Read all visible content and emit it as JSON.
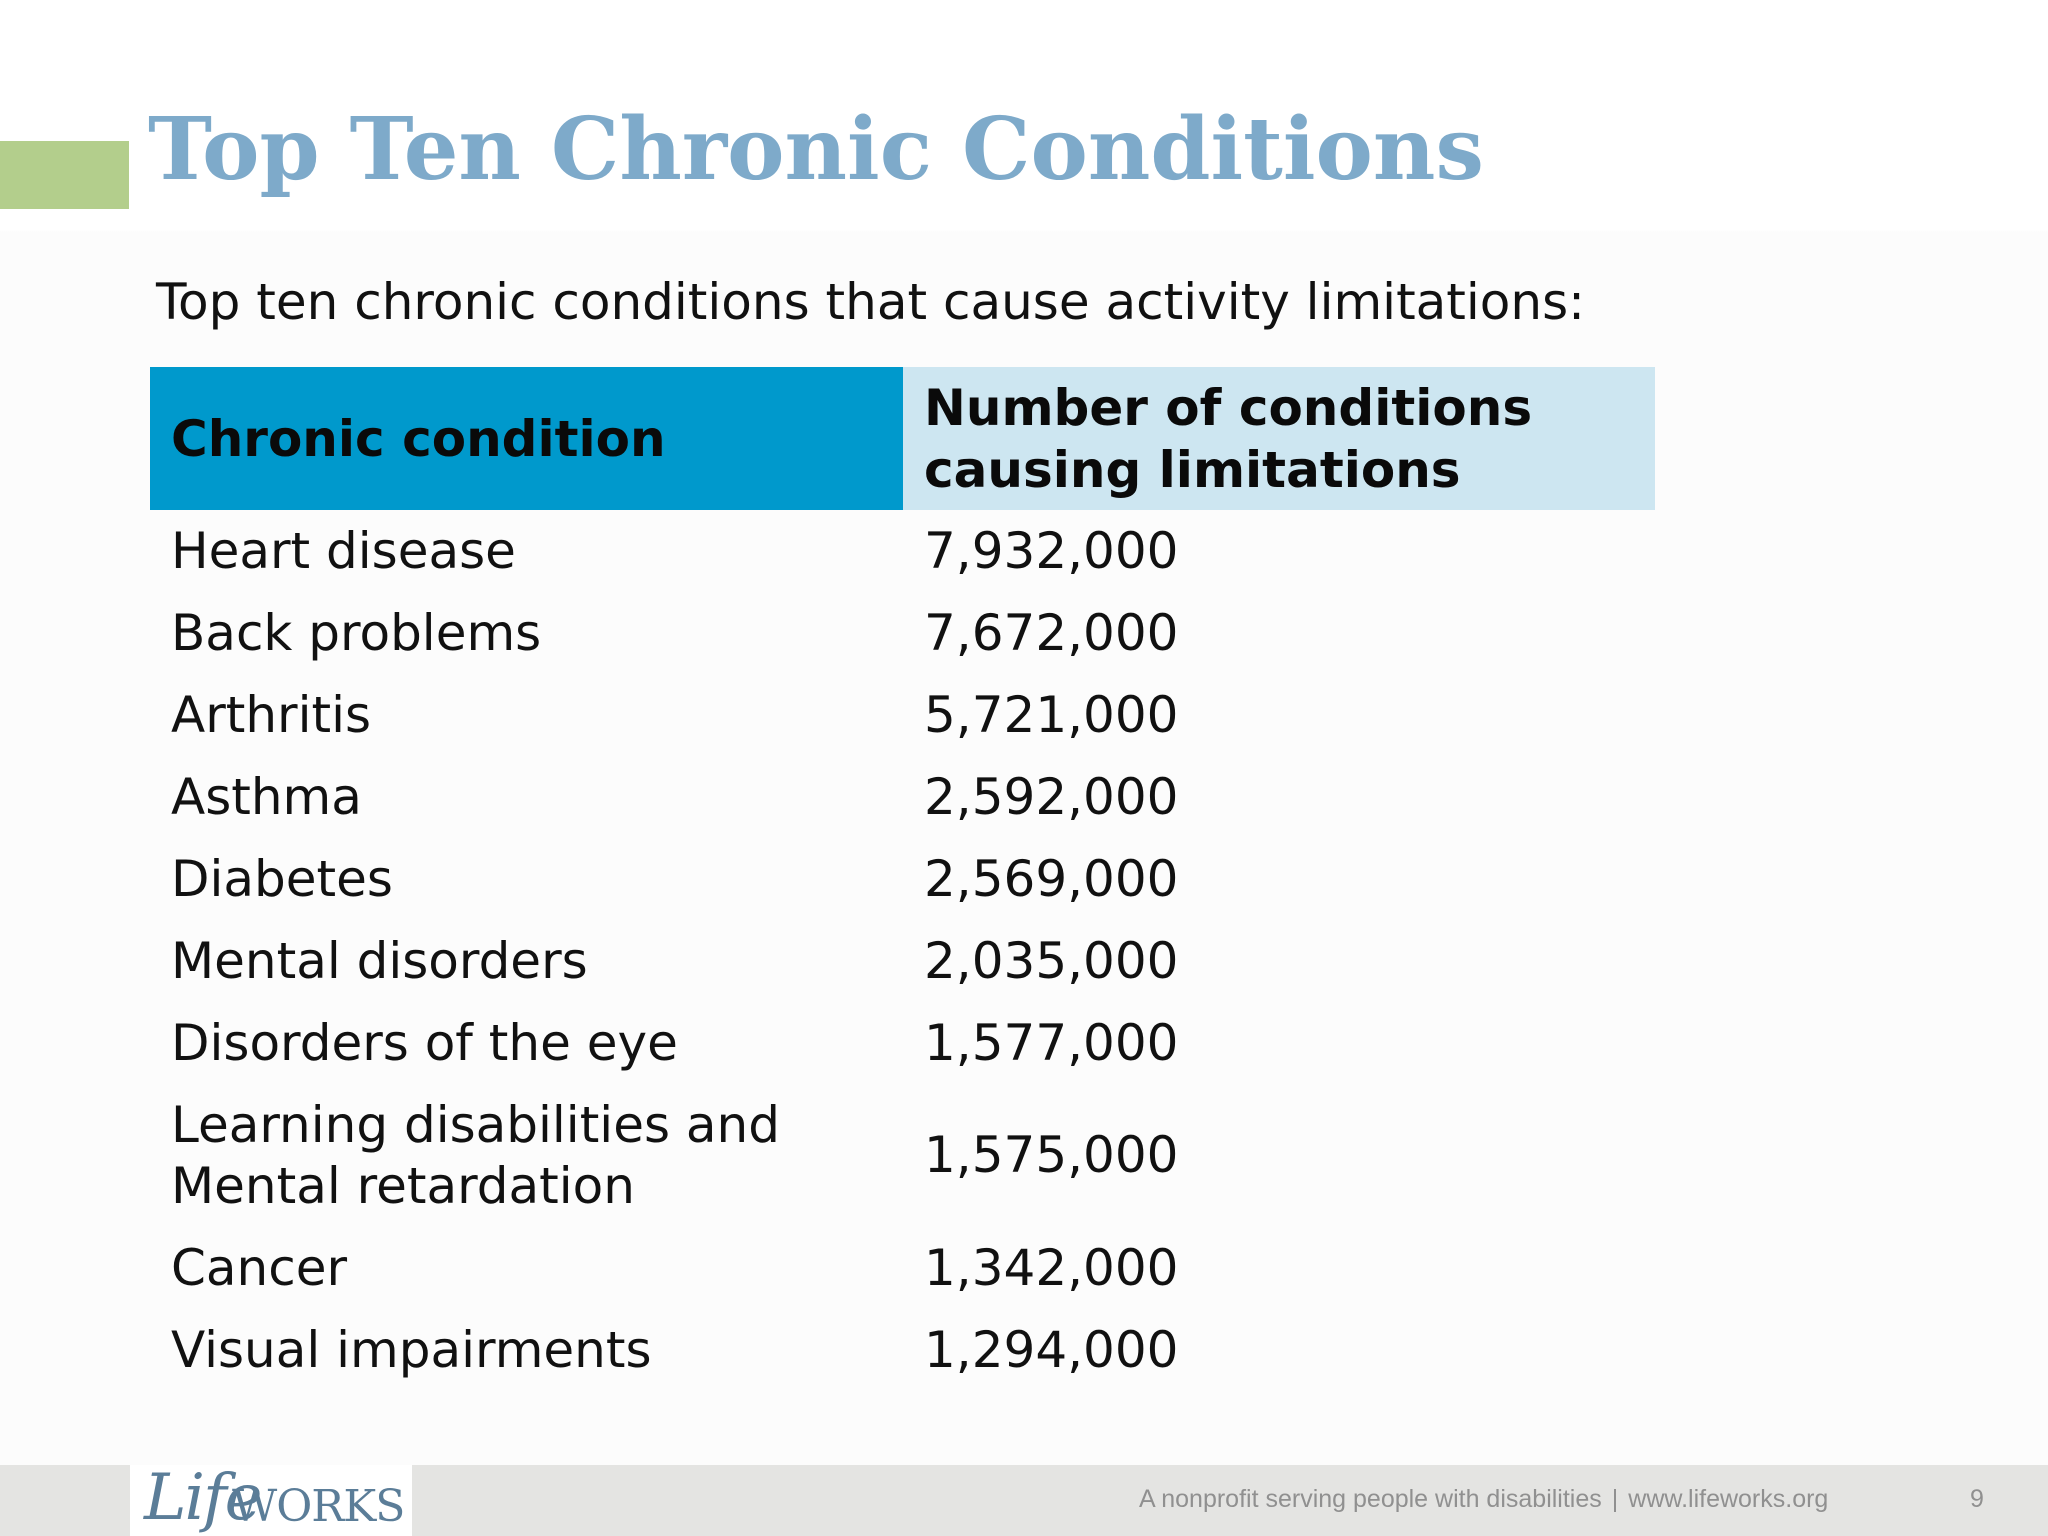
{
  "slide": {
    "title": "Top Ten Chronic Conditions",
    "subtitle": "Top ten chronic conditions that cause activity limitations:",
    "colors": {
      "title": "#7eaaca",
      "accent_bar": "#b3ce8c",
      "header_col1": "#0099cc",
      "header_col2": "#cde6f1"
    }
  },
  "table": {
    "headers": [
      "Chronic condition",
      "Number of conditions causing limitations"
    ],
    "rows": [
      {
        "condition": "Heart disease",
        "count": "7,932,000"
      },
      {
        "condition": "Back problems",
        "count": "7,672,000"
      },
      {
        "condition": "Arthritis",
        "count": "5,721,000"
      },
      {
        "condition": "Asthma",
        "count": "2,592,000"
      },
      {
        "condition": "Diabetes",
        "count": "2,569,000"
      },
      {
        "condition": "Mental disorders",
        "count": "2,035,000"
      },
      {
        "condition": "Disorders of the eye",
        "count": "1,577,000"
      },
      {
        "condition": "Learning disabilities and Mental retardation",
        "count": "1,575,000"
      },
      {
        "condition": "Cancer",
        "count": "1,342,000"
      },
      {
        "condition": "Visual impairments",
        "count": "1,294,000"
      }
    ]
  },
  "footer": {
    "logo": "LifeWORKS",
    "logo_life": "Life",
    "logo_works": "WORKS",
    "tagline": "A nonprofit serving people with disabilities",
    "separator": "|",
    "website": "www.lifeworks.org",
    "page_number": "9"
  }
}
